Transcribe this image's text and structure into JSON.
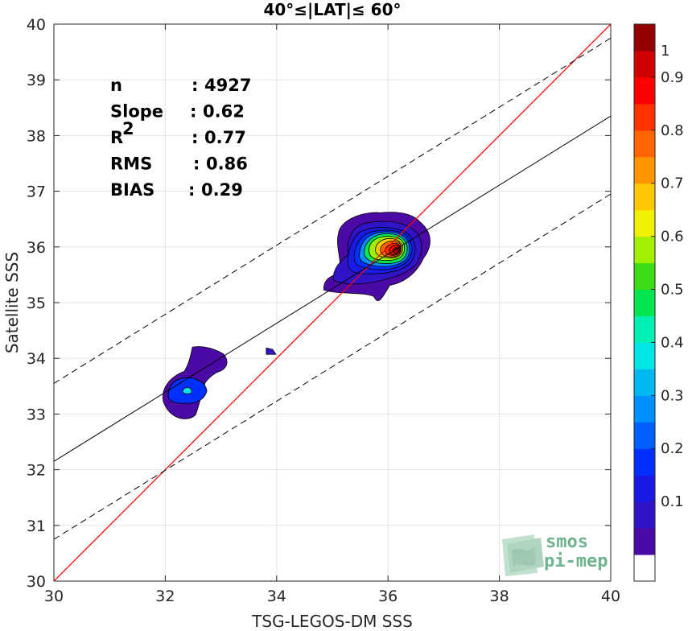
{
  "chart_data": {
    "type": "scatter",
    "title": "40°≤|LAT|≤ 60°",
    "xlabel": "TSG-LEGOS-DM SSS",
    "ylabel": "Satellite SSS",
    "xlim": [
      30,
      40
    ],
    "ylim": [
      30,
      40
    ],
    "xticks": [
      "30",
      "32",
      "34",
      "36",
      "38",
      "40"
    ],
    "yticks": [
      "30",
      "31",
      "32",
      "33",
      "34",
      "35",
      "36",
      "37",
      "38",
      "39",
      "40"
    ],
    "grid": true,
    "stats": [
      {
        "label": "n",
        "sep": ": ",
        "value": "4927"
      },
      {
        "label": "Slope",
        "sep": ": ",
        "value": "0.62"
      },
      {
        "label": "R",
        "sup": "2",
        "sep": ": ",
        "value": "0.77"
      },
      {
        "label": "RMS",
        "sep": ": ",
        "value": "0.86"
      },
      {
        "label": "BIAS",
        "sep": ": ",
        "value": "0.29"
      }
    ],
    "regression": {
      "slope": 0.62,
      "intercept": 13.55,
      "color": "#000000"
    },
    "bounds_offset": 1.4,
    "identity_color": "#ff0000",
    "density_clusters": [
      {
        "name": "cluster-36",
        "center": [
          36.15,
          35.92
        ],
        "levels": 10
      },
      {
        "name": "cluster-32",
        "center": [
          32.4,
          33.42
        ],
        "levels": 3
      },
      {
        "name": "cluster-34",
        "center": [
          33.9,
          34.1
        ],
        "levels": 1
      }
    ],
    "colorbar": {
      "ticks": [
        "0.1",
        "0.2",
        "0.3",
        "0.4",
        "0.5",
        "0.6",
        "0.7",
        "0.8",
        "0.9",
        "1"
      ],
      "range": [
        0,
        1
      ],
      "colors": [
        "#ffffff",
        "#4b0aa5",
        "#3214c8",
        "#1a1ae6",
        "#0030ff",
        "#0060ff",
        "#0090ff",
        "#00b8f0",
        "#00e6e6",
        "#00f0b4",
        "#00e650",
        "#3cdc14",
        "#a0f000",
        "#f0f000",
        "#ffc800",
        "#ff9600",
        "#ff6400",
        "#ff3200",
        "#ff0000",
        "#d20000",
        "#960000"
      ]
    },
    "watermark": [
      "smos",
      "pi-mep"
    ]
  }
}
